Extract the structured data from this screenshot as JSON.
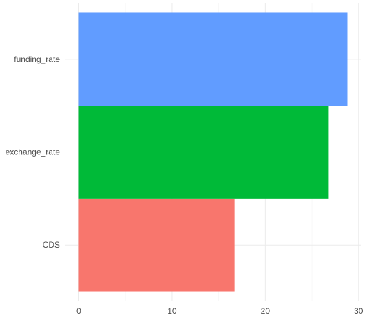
{
  "chart_data": {
    "type": "bar",
    "orientation": "horizontal",
    "title": "",
    "xlabel": "",
    "ylabel": "",
    "categories": [
      "CDS",
      "exchange_rate",
      "funding_rate"
    ],
    "values": [
      16.7,
      26.8,
      28.8
    ],
    "colors": [
      "#F8766D",
      "#00BA38",
      "#619CFF"
    ],
    "xlim": [
      -1.44,
      30.24
    ],
    "x_ticks": [
      0,
      10,
      20,
      30
    ],
    "x_tick_labels": [
      "0",
      "10",
      "20",
      "30"
    ],
    "grid": true,
    "legend": "none"
  }
}
